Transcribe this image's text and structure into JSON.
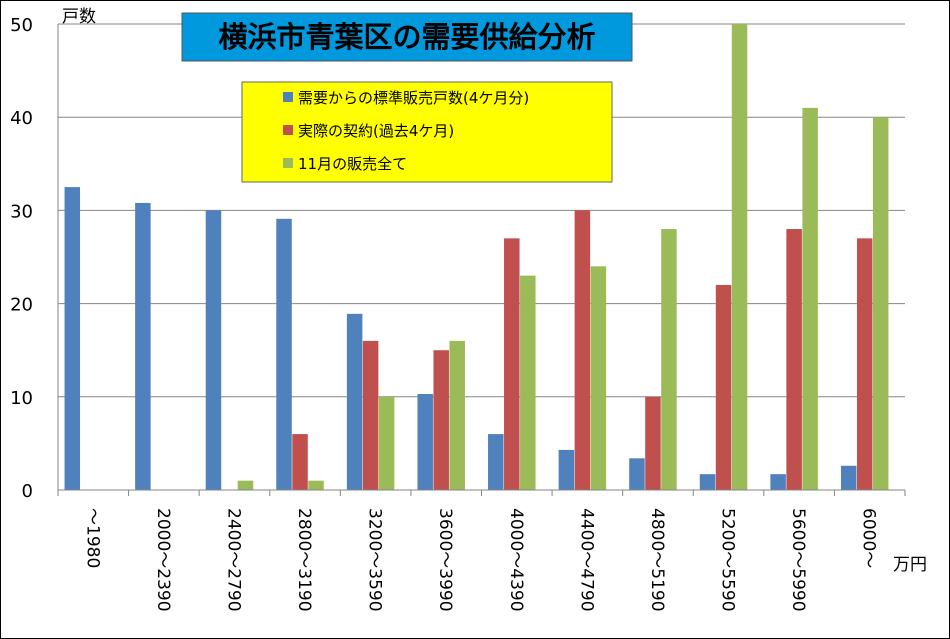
{
  "chart_data": {
    "type": "bar",
    "title": "横浜市青葉区の需要供給分析",
    "ylabel": "戸数",
    "xlabel": "万円",
    "ylim": [
      0,
      50
    ],
    "yticks": [
      0,
      10,
      20,
      30,
      40,
      50
    ],
    "grid": true,
    "legend_position": "top-center",
    "categories": [
      "～1980",
      "2000～2390",
      "2400～2790",
      "2800～3190",
      "3200～3590",
      "3600～3990",
      "4000～4390",
      "4400～4790",
      "4800～5190",
      "5200～5590",
      "5600～5990",
      "6000～"
    ],
    "series": [
      {
        "name": "需要からの標準販売戸数(4ケ月分)",
        "color": "#4F81BD",
        "values": [
          32.5,
          30.8,
          30,
          29.1,
          18.9,
          10.3,
          6,
          4.3,
          3.4,
          1.7,
          1.7,
          2.6
        ]
      },
      {
        "name": "実際の契約(過去4ケ月)",
        "color": "#C0504D",
        "values": [
          0,
          0,
          0,
          6,
          16,
          15,
          27,
          30,
          10,
          22,
          28,
          27
        ]
      },
      {
        "name": "11月の販売全て",
        "color": "#9BBB59",
        "values": [
          0,
          0,
          1,
          1,
          10,
          16,
          23,
          24,
          28,
          50,
          41,
          40
        ]
      }
    ]
  }
}
